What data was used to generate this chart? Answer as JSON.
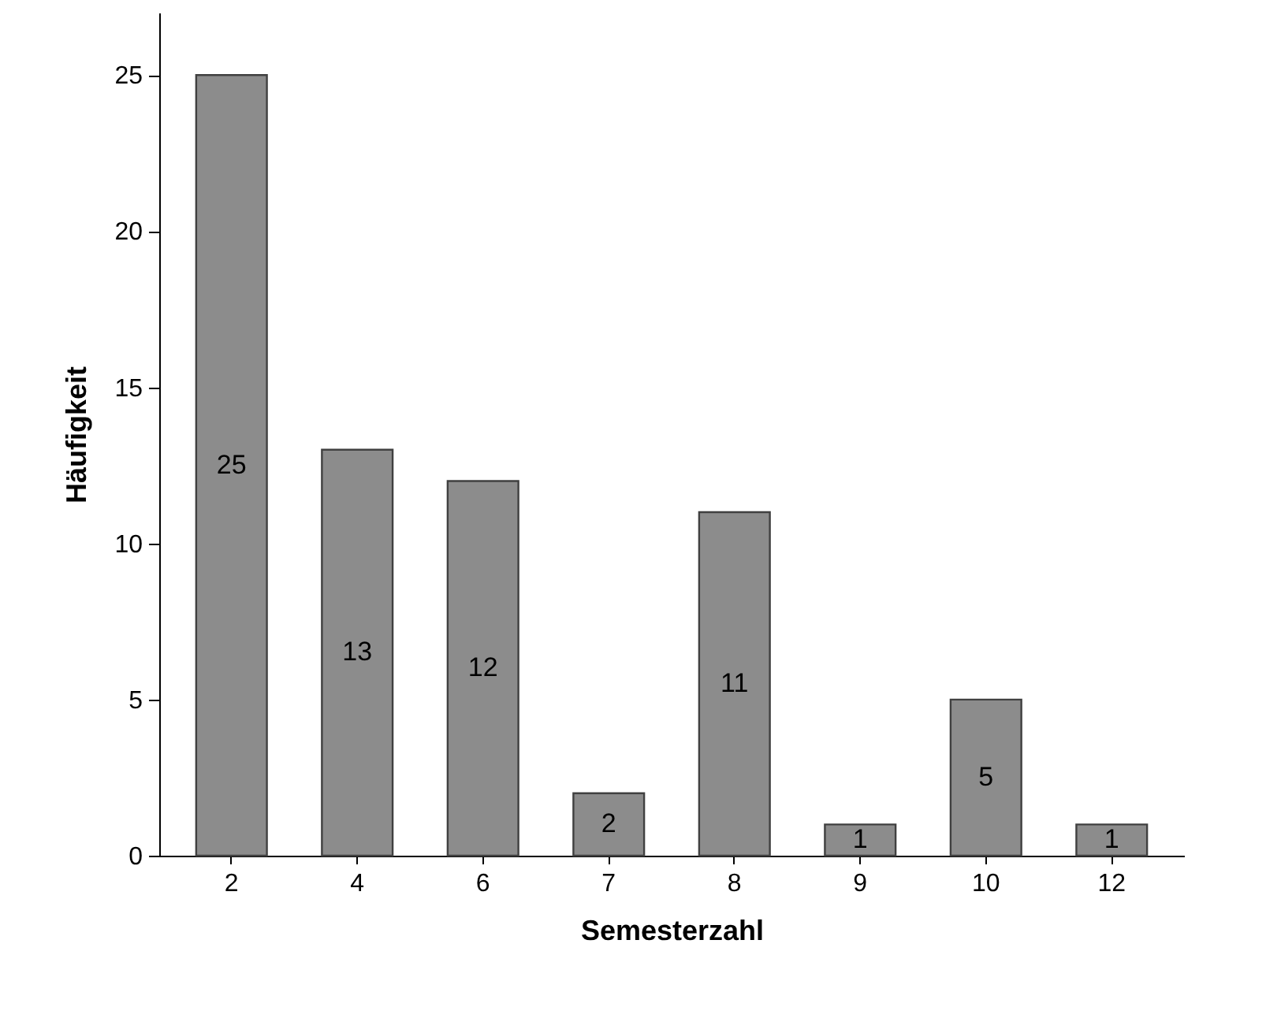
{
  "chart_data": {
    "type": "bar",
    "xlabel": "Semesterzahl",
    "ylabel": "Häufigkeit",
    "categories": [
      "2",
      "4",
      "6",
      "7",
      "8",
      "9",
      "10",
      "12"
    ],
    "values": [
      25,
      13,
      12,
      2,
      11,
      1,
      5,
      1
    ],
    "color": "#8c8c8c",
    "ylim": [
      0,
      27
    ],
    "yticks": [
      0,
      5,
      10,
      15,
      20,
      25
    ],
    "grid": false,
    "data_labels": true
  }
}
